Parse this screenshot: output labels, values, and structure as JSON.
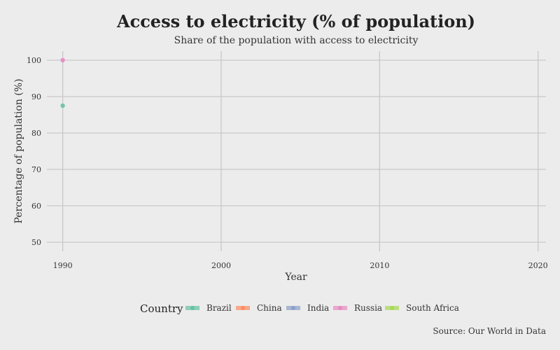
{
  "chart_data": {
    "type": "scatter",
    "title": "Access to electricity (% of population)",
    "subtitle": "Share of the population with access to electricity",
    "xlabel": "Year",
    "ylabel": "Percentage of population (%)",
    "caption": "Source: Our World in Data",
    "xlim": [
      1989,
      2020.5
    ],
    "ylim": [
      47.5,
      102.5
    ],
    "xticks": [
      1990,
      2000,
      2010,
      2020
    ],
    "yticks": [
      50,
      60,
      70,
      80,
      90,
      100
    ],
    "grid": true,
    "legend_title": "Country",
    "legend_position": "bottom",
    "series": [
      {
        "name": "Brazil",
        "color": "#66c2a5",
        "points": [
          {
            "x": 1990,
            "y": 87.5
          }
        ]
      },
      {
        "name": "China",
        "color": "#fc8d62",
        "points": []
      },
      {
        "name": "India",
        "color": "#8da0cb",
        "points": []
      },
      {
        "name": "Russia",
        "color": "#e78ac3",
        "points": [
          {
            "x": 1990,
            "y": 100
          }
        ]
      },
      {
        "name": "South Africa",
        "color": "#a6d854",
        "points": []
      }
    ]
  }
}
